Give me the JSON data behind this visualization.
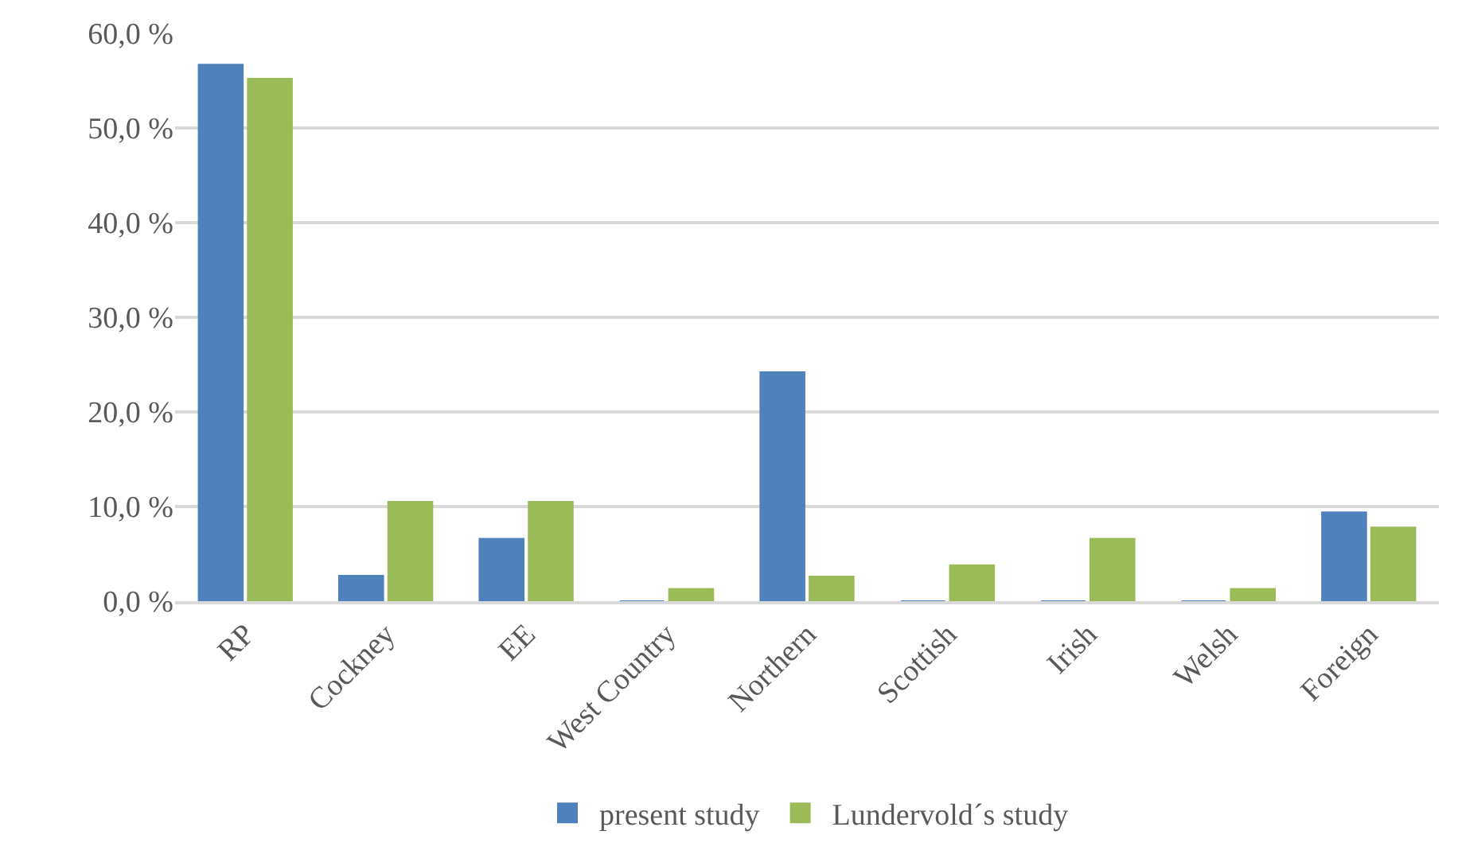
{
  "chart_data": {
    "type": "bar",
    "categories": [
      "RP",
      "Cockney",
      "EE",
      "West Country",
      "Northern",
      "Scottish",
      "Irish",
      "Welsh",
      "Foreign"
    ],
    "series": [
      {
        "name": "present study",
        "color": "#4f81bd",
        "values": [
          56.7,
          2.7,
          6.6,
          0,
          24.2,
          0,
          0,
          0,
          9.4
        ]
      },
      {
        "name": "Lundervold´s study",
        "color": "#9bbb59",
        "values": [
          55.2,
          10.5,
          10.5,
          1.3,
          2.6,
          3.8,
          6.6,
          1.3,
          7.8
        ]
      }
    ],
    "ylim": [
      0,
      60
    ],
    "yticks": [
      {
        "value": 0,
        "label": "0,0 %"
      },
      {
        "value": 10,
        "label": "10,0 %"
      },
      {
        "value": 20,
        "label": "20,0 %"
      },
      {
        "value": 30,
        "label": "30,0 %"
      },
      {
        "value": 40,
        "label": "40,0 %"
      },
      {
        "value": 50,
        "label": "50,0 %"
      },
      {
        "value": 60,
        "label": "60,0 %"
      }
    ],
    "grid": "y",
    "legend": "bottom"
  }
}
